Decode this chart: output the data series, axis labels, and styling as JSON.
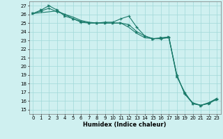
{
  "xlabel": "Humidex (Indice chaleur)",
  "bg_color": "#cff0f0",
  "grid_color": "#a0d8d8",
  "line_color": "#1a7a6a",
  "xlim": [
    -0.5,
    23.5
  ],
  "ylim": [
    14.5,
    27.5
  ],
  "yticks": [
    15,
    16,
    17,
    18,
    19,
    20,
    21,
    22,
    23,
    24,
    25,
    26,
    27
  ],
  "xticks": [
    0,
    1,
    2,
    3,
    4,
    5,
    6,
    7,
    8,
    9,
    10,
    11,
    12,
    13,
    14,
    15,
    16,
    17,
    18,
    19,
    20,
    21,
    22,
    23
  ],
  "series": [
    {
      "x": [
        0,
        1,
        2,
        3,
        4,
        5,
        6,
        7,
        8,
        9,
        10,
        11,
        12,
        13,
        14,
        15,
        16,
        17,
        18,
        19,
        20,
        21,
        22,
        23
      ],
      "y": [
        26.1,
        26.4,
        26.7,
        26.3,
        26.0,
        25.5,
        25.1,
        25.0,
        25.0,
        25.1,
        25.1,
        25.5,
        25.8,
        24.5,
        23.5,
        23.2,
        23.2,
        23.3,
        19.0,
        16.8,
        15.7,
        15.5,
        15.8,
        16.3
      ],
      "marker": "+"
    },
    {
      "x": [
        0,
        1,
        2,
        3,
        4,
        5,
        6,
        7,
        8,
        9,
        10,
        11,
        12,
        13,
        14,
        15,
        16,
        17,
        18,
        19,
        20,
        21,
        22,
        23
      ],
      "y": [
        26.1,
        26.5,
        27.0,
        26.5,
        25.8,
        25.5,
        25.2,
        25.0,
        25.0,
        25.0,
        25.0,
        25.0,
        24.8,
        24.0,
        23.5,
        23.2,
        23.3,
        23.4,
        18.8,
        17.0,
        15.7,
        15.5,
        15.7,
        16.2
      ],
      "marker": ">"
    },
    {
      "x": [
        0,
        1,
        2,
        3,
        4,
        5,
        6,
        7,
        8,
        9,
        10,
        11,
        12,
        13,
        14,
        15,
        16,
        17,
        18,
        19,
        20,
        21,
        22,
        23
      ],
      "y": [
        26.1,
        26.2,
        26.3,
        26.4,
        26.0,
        25.7,
        25.3,
        25.1,
        25.0,
        25.0,
        25.0,
        25.0,
        24.5,
        23.8,
        23.3,
        23.2,
        23.2,
        23.4,
        19.0,
        16.8,
        15.8,
        15.5,
        15.8,
        16.2
      ],
      "marker": "None"
    }
  ]
}
